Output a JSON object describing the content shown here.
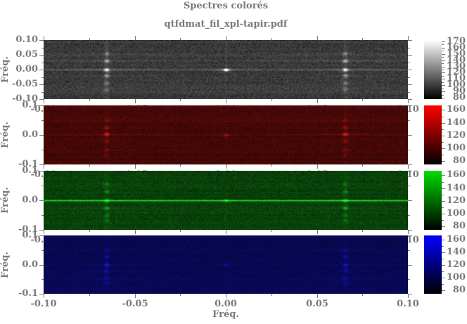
{
  "colors": {
    "text": "#7a7a7a",
    "axis": "#7a7a7a",
    "background": "#ffffff"
  },
  "chart_data": {
    "type": "heatmap",
    "title": "Spectres colorés",
    "subtitle": "qtfdmat_fil_xpl-tapir.pdf",
    "xlabel": "Fréq.",
    "ylabel": "Fréq.",
    "x_range": [
      -0.1,
      0.1
    ],
    "x_major_ticks": [
      -0.1,
      -0.05,
      0.0,
      0.05,
      0.1
    ],
    "x_tick_labels": [
      "-0.10",
      "-0.05",
      "0.00",
      "0.05",
      "0.10"
    ],
    "x_minor_step": 0.025,
    "layout_note": "four stacked spectrogram panels (grayscale, red, green, blue), each with its own intensity colorbar on the right; x tick labels of the upper three panels are hidden behind the panel below, leaving clipped fragments at the edges",
    "panels": [
      {
        "name": "gray",
        "y_range": [
          -0.1,
          0.1
        ],
        "y_major_ticks": [
          0.1,
          0.05,
          0.0,
          -0.05,
          -0.1
        ],
        "y_tick_labels": [
          "0.10",
          "0.05",
          "0.00",
          "-0.05",
          "-0.10"
        ],
        "y_minor_step": 0.025,
        "tint": [
          1,
          1,
          1
        ],
        "base": 58,
        "noise": 13,
        "streak": 0.11,
        "features": {
          "columns": [
            {
              "x": -0.0655,
              "halo": 14,
              "blobs": [
                [
                  0.055,
                  60
                ],
                [
                  0.03,
                  105
                ],
                [
                  0.0,
                  165
                ],
                [
                  -0.02,
                  85
                ],
                [
                  -0.045,
                  55
                ],
                [
                  -0.066,
                  45
                ]
              ]
            },
            {
              "x": 0.0655,
              "halo": 14,
              "blobs": [
                [
                  0.055,
                  60
                ],
                [
                  0.03,
                  105
                ],
                [
                  0.0,
                  165
                ],
                [
                  -0.02,
                  85
                ],
                [
                  -0.045,
                  55
                ],
                [
                  -0.066,
                  45
                ]
              ]
            }
          ],
          "center": {
            "amp": 230,
            "streak": 90
          },
          "hline": 16,
          "vline": 12
        },
        "colorbar": {
          "top_color": "#ffffff",
          "range": [
            78,
            172
          ],
          "labels": [
            "170",
            "160",
            "150",
            "140",
            "130",
            "120",
            "110",
            "100",
            "90",
            "80"
          ],
          "label_values": [
            170,
            160,
            150,
            140,
            130,
            120,
            110,
            100,
            90,
            80
          ],
          "minor_ticks": [
            165,
            155,
            145,
            135,
            125,
            115,
            105,
            95,
            85
          ]
        }
      },
      {
        "name": "red",
        "y_range": [
          -0.1,
          0.1
        ],
        "y_major_ticks": [
          0.1,
          0.0,
          -0.1
        ],
        "y_tick_labels": [
          "0.1",
          "0.0",
          "-0.1"
        ],
        "y_minor_step": 0.05,
        "tint": [
          1,
          0.12,
          0.1
        ],
        "base": 68,
        "noise": 12,
        "streak": 0.1,
        "features": {
          "columns": [
            {
              "x": -0.0655,
              "halo": 10,
              "blobs": [
                [
                  0.05,
                  35
                ],
                [
                  0.025,
                  75
                ],
                [
                  0.003,
                  140
                ],
                [
                  -0.02,
                  55
                ],
                [
                  -0.05,
                  40
                ],
                [
                  -0.068,
                  30
                ]
              ]
            },
            {
              "x": 0.0655,
              "halo": 10,
              "blobs": [
                [
                  0.05,
                  35
                ],
                [
                  0.025,
                  75
                ],
                [
                  0.003,
                  140
                ],
                [
                  -0.02,
                  55
                ],
                [
                  -0.05,
                  40
                ],
                [
                  -0.068,
                  30
                ]
              ]
            }
          ],
          "center": {
            "amp": 70,
            "streak": 30
          },
          "hline": 8,
          "vline": 5
        },
        "colorbar": {
          "top_color": "#ff0000",
          "range": [
            75,
            167
          ],
          "labels": [
            "160",
            "140",
            "120",
            "100",
            "80"
          ],
          "label_values": [
            160,
            140,
            120,
            100,
            80
          ],
          "minor_ticks": [
            170,
            150,
            130,
            110,
            90
          ]
        }
      },
      {
        "name": "green",
        "y_range": [
          -0.1,
          0.1
        ],
        "y_major_ticks": [
          0.1,
          0.0,
          -0.1
        ],
        "y_tick_labels": [
          "0.1",
          "0.0",
          "-0.1"
        ],
        "y_minor_step": 0.05,
        "tint": [
          0.14,
          1,
          0.16
        ],
        "base": 62,
        "noise": 12,
        "streak": 0.1,
        "features": {
          "columns": [
            {
              "x": -0.0655,
              "halo": 10,
              "blobs": [
                [
                  0.055,
                  45
                ],
                [
                  0.03,
                  60
                ],
                [
                  0.0,
                  110
                ],
                [
                  -0.025,
                  85
                ],
                [
                  -0.05,
                  45
                ],
                [
                  -0.068,
                  35
                ]
              ]
            },
            {
              "x": 0.0655,
              "halo": 10,
              "blobs": [
                [
                  0.055,
                  45
                ],
                [
                  0.03,
                  60
                ],
                [
                  0.0,
                  110
                ],
                [
                  -0.025,
                  85
                ],
                [
                  -0.05,
                  45
                ],
                [
                  -0.068,
                  35
                ]
              ]
            }
          ],
          "center": {
            "amp": 80,
            "streak": 40
          },
          "hline": 150,
          "vline": 4
        },
        "colorbar": {
          "top_color": "#00dd00",
          "range": [
            75,
            167
          ],
          "labels": [
            "160",
            "140",
            "120",
            "100",
            "80"
          ],
          "label_values": [
            160,
            140,
            120,
            100,
            80
          ],
          "minor_ticks": [
            170,
            150,
            130,
            110,
            90
          ]
        }
      },
      {
        "name": "blue",
        "y_range": [
          -0.1,
          0.1
        ],
        "y_major_ticks": [
          0.1,
          0.0,
          -0.1
        ],
        "y_tick_labels": [
          "0.1",
          "0.0",
          "-0.1"
        ],
        "y_minor_step": 0.05,
        "tint": [
          0.1,
          0.1,
          1
        ],
        "base": 80,
        "noise": 12,
        "streak": 0.09,
        "features": {
          "columns": [
            {
              "x": -0.0655,
              "halo": 10,
              "blobs": [
                [
                  0.05,
                  45
                ],
                [
                  0.028,
                  85
                ],
                [
                  0.0,
                  115
                ],
                [
                  -0.02,
                  65
                ],
                [
                  -0.045,
                  55
                ],
                [
                  -0.062,
                  40
                ]
              ]
            },
            {
              "x": 0.0655,
              "halo": 10,
              "blobs": [
                [
                  0.05,
                  45
                ],
                [
                  0.028,
                  85
                ],
                [
                  0.0,
                  115
                ],
                [
                  -0.02,
                  65
                ],
                [
                  -0.045,
                  55
                ],
                [
                  -0.062,
                  40
                ]
              ]
            }
          ],
          "center": {
            "amp": 65,
            "streak": 30
          },
          "hline": 7,
          "vline": 4
        },
        "colorbar": {
          "top_color": "#0000ff",
          "range": [
            75,
            167
          ],
          "labels": [
            "160",
            "140",
            "120",
            "100",
            "80"
          ],
          "label_values": [
            160,
            140,
            120,
            100,
            80
          ],
          "minor_ticks": [
            170,
            150,
            130,
            110,
            90
          ]
        }
      }
    ]
  }
}
